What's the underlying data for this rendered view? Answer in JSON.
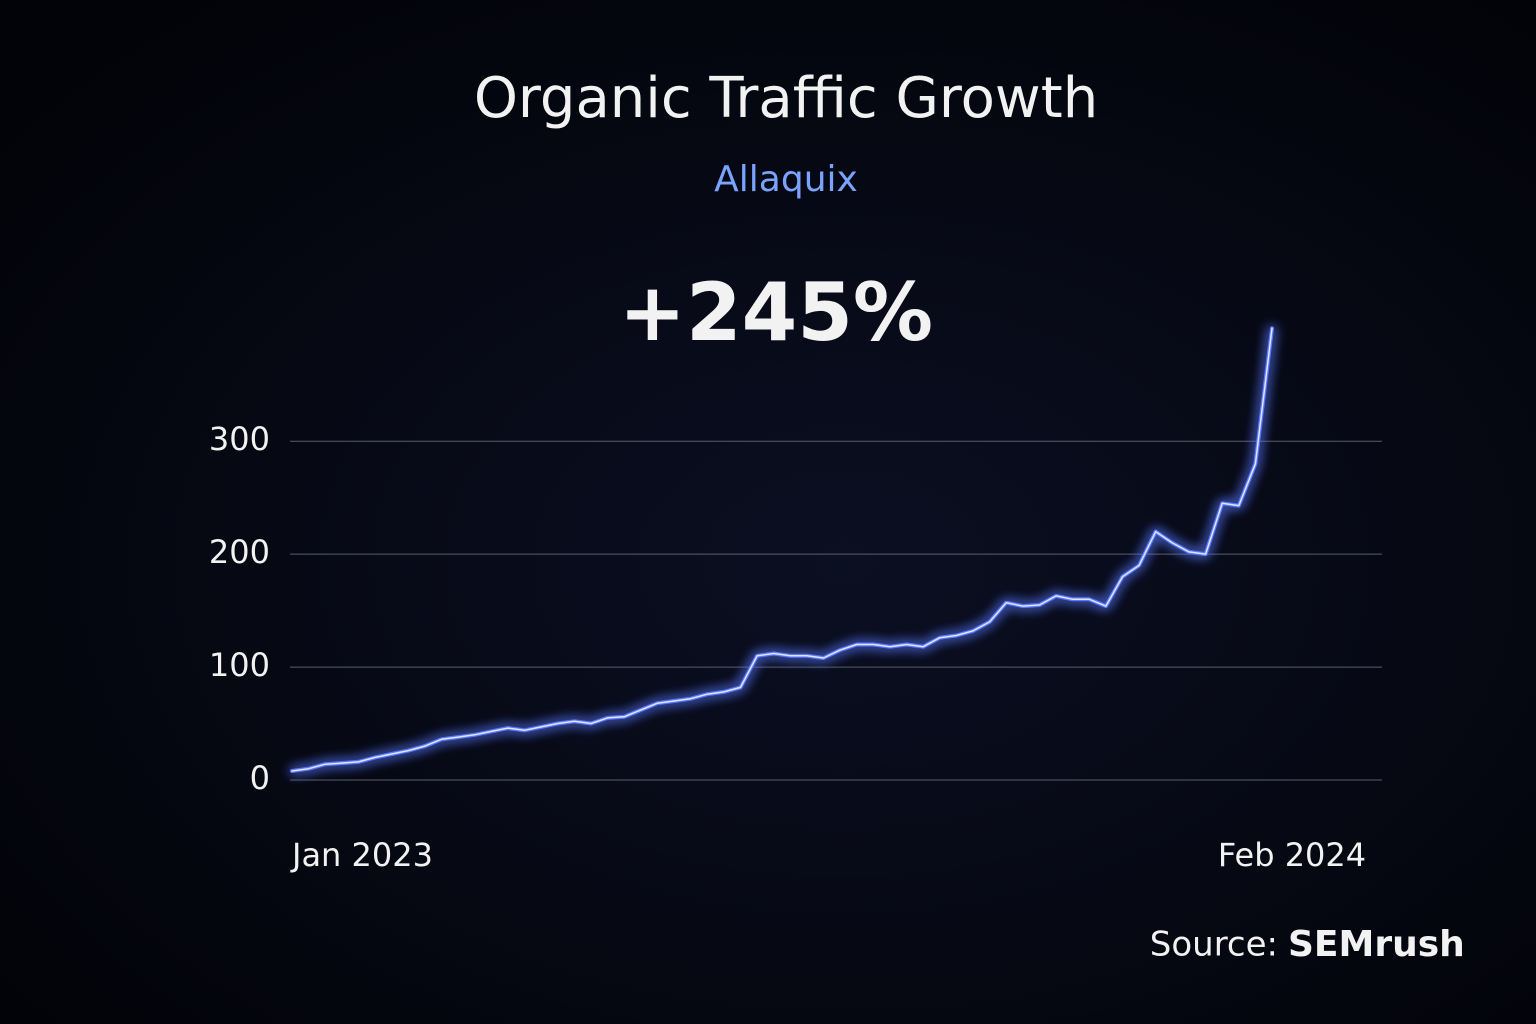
{
  "chart_data": {
    "type": "line",
    "title": "Organic Traffic Growth",
    "subtitle": "Allaquix",
    "annotation": "+245%",
    "source_label": "Source:",
    "source": "SEMrush",
    "categories": [
      "Jan 2023",
      null,
      null,
      null,
      null,
      null,
      null,
      null,
      null,
      null,
      null,
      null,
      null,
      null,
      null,
      null,
      null,
      null,
      null,
      null,
      null,
      null,
      null,
      null,
      null,
      null,
      null,
      null,
      null,
      null,
      null,
      null,
      null,
      null,
      null,
      null,
      null,
      null,
      null,
      null,
      null,
      null,
      null,
      null,
      null,
      null,
      null,
      null,
      null,
      null,
      null,
      null,
      null,
      null,
      null,
      null,
      null,
      null,
      null,
      "Feb 2024"
    ],
    "values": [
      8,
      10,
      14,
      15,
      16,
      20,
      23,
      26,
      30,
      36,
      38,
      40,
      43,
      46,
      44,
      47,
      50,
      52,
      50,
      55,
      56,
      62,
      68,
      70,
      72,
      76,
      78,
      82,
      110,
      112,
      110,
      110,
      108,
      115,
      120,
      120,
      118,
      120,
      118,
      126,
      128,
      132,
      140,
      157,
      154,
      155,
      163,
      160,
      160,
      154,
      180,
      190,
      220,
      210,
      202,
      200,
      245,
      243,
      280,
      400
    ],
    "color": "#5a78ff",
    "ylim": [
      0,
      410
    ],
    "yticks": [
      0,
      100,
      200,
      300
    ],
    "grid": true
  }
}
